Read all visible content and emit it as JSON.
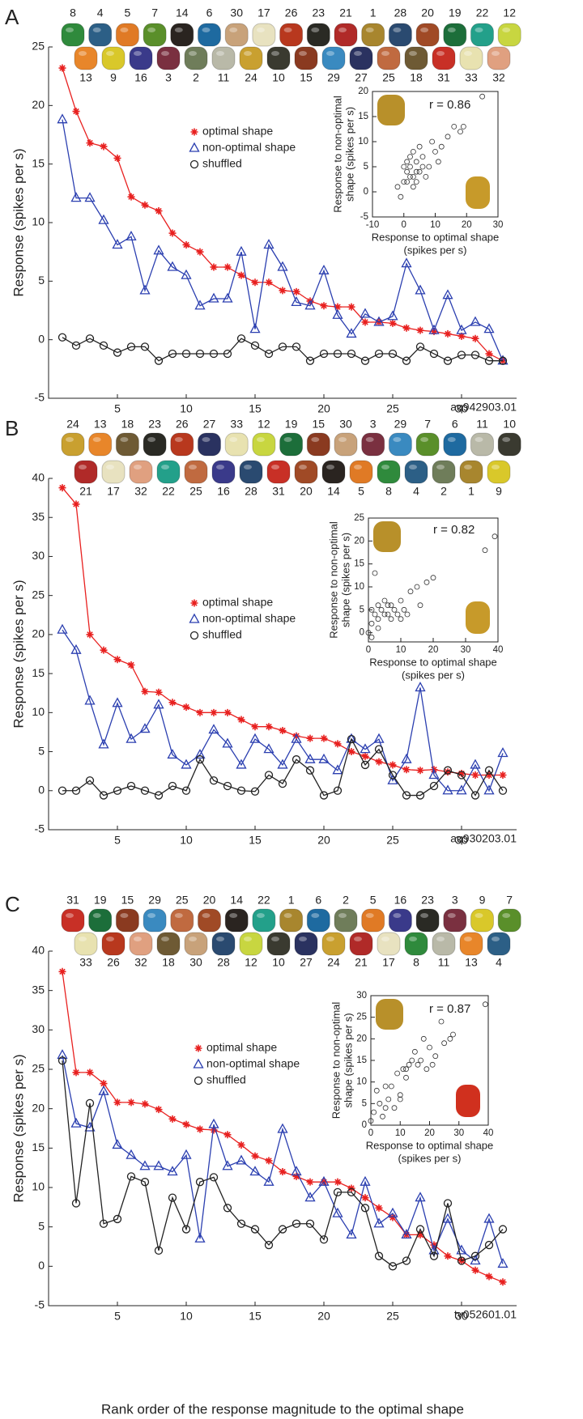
{
  "chart_data": [
    {
      "type": "line",
      "panel_label": "A",
      "ylabel": "Response (spikes per s)",
      "annotation": "aq942903.01",
      "shape_labels": {
        "top": [
          8,
          4,
          5,
          7,
          14,
          6,
          30,
          17,
          26,
          23,
          21,
          1,
          28,
          20,
          19,
          22,
          12
        ],
        "bottom": [
          13,
          9,
          16,
          3,
          2,
          11,
          24,
          10,
          15,
          29,
          27,
          25,
          18,
          31,
          33,
          32
        ]
      },
      "x": [
        1,
        2,
        3,
        4,
        5,
        6,
        7,
        8,
        9,
        10,
        11,
        12,
        13,
        14,
        15,
        16,
        17,
        18,
        19,
        20,
        21,
        22,
        23,
        24,
        25,
        26,
        27,
        28,
        29,
        30,
        31,
        32,
        33
      ],
      "xlim": [
        0,
        34
      ],
      "xticks": [
        5,
        10,
        15,
        20,
        25,
        30
      ],
      "ylim": [
        -5,
        25
      ],
      "yticks": [
        -5,
        0,
        5,
        10,
        15,
        20,
        25
      ],
      "series": [
        {
          "name": "optimal shape",
          "color": "#e8201f",
          "marker": "star",
          "values": [
            23.2,
            19.5,
            16.8,
            16.5,
            15.5,
            12.2,
            11.5,
            11.0,
            9.1,
            8.1,
            7.5,
            6.2,
            6.2,
            5.5,
            4.9,
            4.9,
            4.2,
            4.1,
            3.3,
            2.9,
            2.8,
            2.8,
            1.5,
            1.5,
            1.4,
            1.0,
            0.8,
            0.7,
            0.5,
            0.3,
            0.1,
            -1.2,
            -1.8
          ]
        },
        {
          "name": "non-optimal shape",
          "color": "#2b3fb0",
          "marker": "triangle",
          "values": [
            18.8,
            12.1,
            12.1,
            10.2,
            8.1,
            8.8,
            4.2,
            7.6,
            6.2,
            5.5,
            2.9,
            3.5,
            3.5,
            7.5,
            0.9,
            8.1,
            6.2,
            3.2,
            2.9,
            5.9,
            2.1,
            0.5,
            2.2,
            1.5,
            2.0,
            6.5,
            4.2,
            0.8,
            3.8,
            0.8,
            1.5,
            0.9,
            -1.8
          ]
        },
        {
          "name": "shuffled",
          "color": "#222222",
          "marker": "circle",
          "values": [
            0.2,
            -0.5,
            0.1,
            -0.5,
            -1.1,
            -0.6,
            -0.6,
            -1.8,
            -1.2,
            -1.2,
            -1.2,
            -1.2,
            -1.2,
            0.1,
            -0.5,
            -1.2,
            -0.6,
            -0.6,
            -1.8,
            -1.2,
            -1.2,
            -1.2,
            -1.8,
            -1.2,
            -1.2,
            -1.8,
            -0.6,
            -1.2,
            -1.8,
            -1.3,
            -1.3,
            -1.8,
            -1.8
          ]
        }
      ]
    },
    {
      "type": "scatter",
      "annotation": "r = 0.86",
      "xlabel": [
        "Response to optimal shape",
        "(spikes per s)"
      ],
      "ylabel": [
        "Response to non-optimal",
        "shape (spikes per s)"
      ],
      "xlim": [
        -10,
        30
      ],
      "xticks": [
        -10,
        0,
        10,
        20,
        30
      ],
      "ylim": [
        -5,
        20
      ],
      "yticks": [
        -5,
        0,
        5,
        10,
        15,
        20
      ],
      "x": [
        -1,
        0,
        0,
        1,
        1,
        2,
        2,
        2,
        3,
        3,
        3,
        4,
        4,
        5,
        5,
        6,
        6,
        7,
        8,
        9,
        10,
        11,
        12,
        14,
        16,
        18,
        19,
        -2,
        1,
        4,
        25
      ],
      "values": [
        -1,
        2,
        5,
        2,
        4,
        3,
        7,
        5,
        1,
        8,
        3,
        2,
        6,
        9,
        4,
        5,
        7,
        3,
        5,
        10,
        8,
        6,
        9,
        11,
        13,
        12,
        13,
        1,
        6,
        4,
        19
      ]
    },
    {
      "type": "line",
      "panel_label": "B",
      "ylabel": "Response (spikes per s)",
      "annotation": "aq930203.01",
      "shape_labels": {
        "top": [
          24,
          13,
          18,
          23,
          26,
          27,
          33,
          12,
          19,
          15,
          30,
          3,
          29,
          7,
          6,
          11,
          10
        ],
        "bottom": [
          21,
          17,
          32,
          22,
          25,
          16,
          28,
          31,
          20,
          14,
          5,
          8,
          4,
          2,
          1,
          9
        ]
      },
      "x": [
        1,
        2,
        3,
        4,
        5,
        6,
        7,
        8,
        9,
        10,
        11,
        12,
        13,
        14,
        15,
        16,
        17,
        18,
        19,
        20,
        21,
        22,
        23,
        24,
        25,
        26,
        27,
        28,
        29,
        30,
        31,
        32,
        33
      ],
      "xlim": [
        0,
        34
      ],
      "xticks": [
        5,
        10,
        15,
        20,
        25,
        30
      ],
      "ylim": [
        -5,
        40
      ],
      "yticks": [
        -5,
        0,
        5,
        10,
        15,
        20,
        25,
        30,
        35,
        40
      ],
      "series": [
        {
          "name": "optimal shape",
          "color": "#e8201f",
          "marker": "star",
          "values": [
            38.8,
            36.7,
            20.0,
            18.0,
            16.8,
            16.1,
            12.7,
            12.6,
            11.3,
            10.7,
            10.0,
            10.0,
            10.0,
            9.1,
            8.2,
            8.2,
            7.7,
            7.0,
            6.7,
            6.7,
            6.0,
            5.0,
            4.4,
            3.7,
            3.3,
            2.7,
            2.6,
            2.7,
            2.4,
            2.2,
            2.0,
            2.0,
            2.0
          ]
        },
        {
          "name": "non-optimal shape",
          "color": "#2b3fb0",
          "marker": "triangle",
          "values": [
            20.6,
            18.0,
            11.5,
            5.9,
            11.2,
            6.6,
            7.9,
            11.0,
            4.6,
            3.3,
            4.6,
            7.8,
            6.0,
            3.3,
            6.6,
            5.3,
            3.3,
            6.6,
            4.0,
            4.0,
            2.6,
            6.6,
            5.3,
            6.6,
            1.3,
            4.0,
            13.2,
            2.0,
            0.0,
            0.0,
            3.3,
            0.0,
            4.8
          ]
        },
        {
          "name": "shuffled",
          "color": "#222222",
          "marker": "circle",
          "values": [
            0,
            0,
            1.3,
            -0.6,
            0,
            0.6,
            0,
            -0.6,
            0.6,
            0,
            4.0,
            1.3,
            0.6,
            0,
            -0.1,
            2.0,
            0.9,
            4.0,
            2.6,
            -0.6,
            0,
            6.6,
            3.3,
            5.3,
            2.0,
            -0.6,
            -0.6,
            0.6,
            2.6,
            2.0,
            -0.6,
            2.6,
            0
          ]
        }
      ]
    },
    {
      "type": "scatter",
      "annotation": "r = 0.82",
      "xlabel": [
        "Response to optimal shape",
        "(spikes per s)"
      ],
      "ylabel": [
        "Response to non-optimal",
        "shape (spikes per s)"
      ],
      "xlim": [
        0,
        40
      ],
      "xticks": [
        0,
        10,
        20,
        30,
        40
      ],
      "ylim": [
        -2,
        25
      ],
      "yticks": [
        0,
        5,
        10,
        15,
        20,
        25
      ],
      "x": [
        0,
        1,
        1,
        2,
        2,
        3,
        3,
        4,
        5,
        5,
        6,
        7,
        7,
        8,
        9,
        10,
        10,
        11,
        12,
        13,
        15,
        16,
        18,
        20,
        36,
        39,
        1,
        3,
        6
      ],
      "values": [
        0,
        2,
        5,
        13,
        4,
        3,
        6,
        5,
        4,
        7,
        6,
        3,
        6,
        5,
        4,
        7,
        3,
        5,
        4,
        9,
        10,
        6,
        11,
        12,
        18,
        21,
        -1,
        1,
        4
      ]
    },
    {
      "type": "line",
      "panel_label": "C",
      "ylabel": "Response (spikes per s)",
      "xlabel": "Rank order of the response magnitude to the optimal shape",
      "annotation": "tv052601.01",
      "shape_labels": {
        "top": [
          31,
          19,
          15,
          29,
          25,
          20,
          14,
          22,
          1,
          6,
          2,
          5,
          16,
          23,
          3,
          9,
          7
        ],
        "bottom": [
          33,
          26,
          32,
          18,
          30,
          28,
          12,
          10,
          27,
          24,
          21,
          17,
          8,
          11,
          13,
          4
        ]
      },
      "x": [
        1,
        2,
        3,
        4,
        5,
        6,
        7,
        8,
        9,
        10,
        11,
        12,
        13,
        14,
        15,
        16,
        17,
        18,
        19,
        20,
        21,
        22,
        23,
        24,
        25,
        26,
        27,
        28,
        29,
        30,
        31,
        32,
        33
      ],
      "xlim": [
        0,
        34
      ],
      "xticks": [
        5,
        10,
        15,
        20,
        25,
        30
      ],
      "ylim": [
        -5,
        40
      ],
      "yticks": [
        -5,
        0,
        5,
        10,
        15,
        20,
        25,
        30,
        35,
        40
      ],
      "series": [
        {
          "name": "optimal shape",
          "color": "#e8201f",
          "marker": "star",
          "values": [
            37.4,
            24.6,
            24.6,
            23.2,
            20.8,
            20.8,
            20.6,
            19.9,
            18.7,
            18.0,
            17.4,
            17.3,
            16.7,
            15.4,
            14.0,
            13.4,
            12.0,
            11.4,
            10.7,
            10.7,
            10.7,
            9.9,
            8.7,
            7.4,
            6.2,
            4.0,
            4.0,
            2.7,
            1.3,
            0.7,
            -0.5,
            -1.3,
            -2.0
          ]
        },
        {
          "name": "non-optimal shape",
          "color": "#2b3fb0",
          "marker": "triangle",
          "values": [
            26.8,
            18.1,
            17.6,
            22.2,
            15.4,
            14.1,
            12.7,
            12.7,
            12.0,
            14.1,
            3.5,
            18.0,
            12.7,
            13.4,
            12.0,
            10.7,
            17.4,
            12.0,
            8.7,
            10.7,
            6.7,
            4.0,
            10.7,
            5.4,
            6.7,
            4.0,
            8.7,
            2.0,
            6.0,
            2.0,
            0.7,
            6.0,
            0.3
          ]
        },
        {
          "name": "shuffled",
          "color": "#222222",
          "marker": "circle",
          "values": [
            26.1,
            8.0,
            20.7,
            5.4,
            6.0,
            11.4,
            10.7,
            2.0,
            8.7,
            4.7,
            10.7,
            11.3,
            7.4,
            5.4,
            4.7,
            2.7,
            4.7,
            5.4,
            5.4,
            3.4,
            9.4,
            9.4,
            7.4,
            1.3,
            0.0,
            0.7,
            4.7,
            1.3,
            8.0,
            0.7,
            1.3,
            2.7,
            4.7
          ]
        }
      ]
    },
    {
      "type": "scatter",
      "annotation": "r = 0.87",
      "xlabel": [
        "Response to optimal shape",
        "(spikes per s)"
      ],
      "ylabel": [
        "Response to non-optimal",
        "shape (spikes per s)"
      ],
      "xlim": [
        0,
        40
      ],
      "xticks": [
        0,
        10,
        20,
        30,
        40
      ],
      "ylim": [
        0,
        30
      ],
      "yticks": [
        0,
        5,
        10,
        15,
        20,
        25,
        30
      ],
      "x": [
        0,
        1,
        2,
        3,
        4,
        5,
        6,
        7,
        8,
        9,
        10,
        11,
        12,
        12,
        13,
        14,
        15,
        16,
        17,
        18,
        19,
        20,
        21,
        22,
        24,
        25,
        27,
        28,
        39,
        5,
        10
      ],
      "values": [
        1,
        3,
        8,
        5,
        2,
        9,
        6,
        9,
        4,
        12,
        7,
        13,
        13,
        11,
        14,
        15,
        17,
        14,
        15,
        20,
        13,
        18,
        14,
        16,
        24,
        19,
        20,
        21,
        28,
        4,
        6
      ]
    }
  ]
}
